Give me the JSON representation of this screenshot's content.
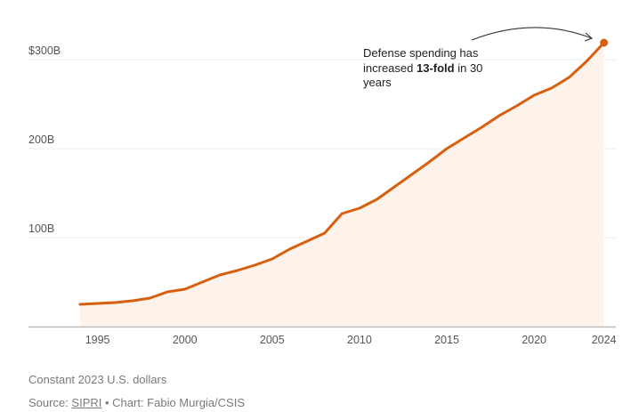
{
  "chart_data": {
    "type": "area",
    "title": "",
    "xlabel": "",
    "ylabel": "",
    "x": [
      1994,
      1995,
      1996,
      1997,
      1998,
      1999,
      2000,
      2001,
      2002,
      2003,
      2004,
      2005,
      2006,
      2007,
      2008,
      2009,
      2010,
      2011,
      2012,
      2013,
      2014,
      2015,
      2016,
      2017,
      2018,
      2019,
      2020,
      2021,
      2022,
      2023,
      2024
    ],
    "series": [
      {
        "name": "Defense spending",
        "values": [
          25,
          26,
          27,
          29,
          32,
          39,
          42,
          50,
          58,
          63,
          69,
          76,
          87,
          96,
          105,
          127,
          133,
          143,
          157,
          171,
          185,
          200,
          212,
          224,
          237,
          248,
          260,
          268,
          280,
          298,
          319
        ]
      }
    ],
    "ylim": [
      0,
      320
    ],
    "xlim": [
      1994,
      2024
    ],
    "yticks": [
      {
        "value": 100,
        "label": "100B"
      },
      {
        "value": 200,
        "label": "200B"
      },
      {
        "value": 300,
        "label": "$300B"
      }
    ],
    "xticks": [
      {
        "value": 1995,
        "label": "1995"
      },
      {
        "value": 2000,
        "label": "2000"
      },
      {
        "value": 2005,
        "label": "2005"
      },
      {
        "value": 2010,
        "label": "2010"
      },
      {
        "value": 2015,
        "label": "2015"
      },
      {
        "value": 2020,
        "label": "2020"
      },
      {
        "value": 2024,
        "label": "2024"
      }
    ],
    "grid": true,
    "legend": "none",
    "colors": {
      "line": "#D6600F",
      "fill": "#FEF3EA",
      "grid": "#ECECEC",
      "axis": "#BDBDBD"
    },
    "annotation": {
      "line1": "Defense spending has",
      "line2_pre": "increased ",
      "line2_bold": "13-fold",
      "line2_post": " in 30",
      "line3": "years",
      "points_to_year": 2024
    }
  },
  "footer": {
    "note": "Constant 2023 U.S. dollars",
    "source_prefix": "Source: ",
    "source_link": "SIPRI",
    "source_suffix": " • Chart: Fabio Murgia/CSIS"
  }
}
